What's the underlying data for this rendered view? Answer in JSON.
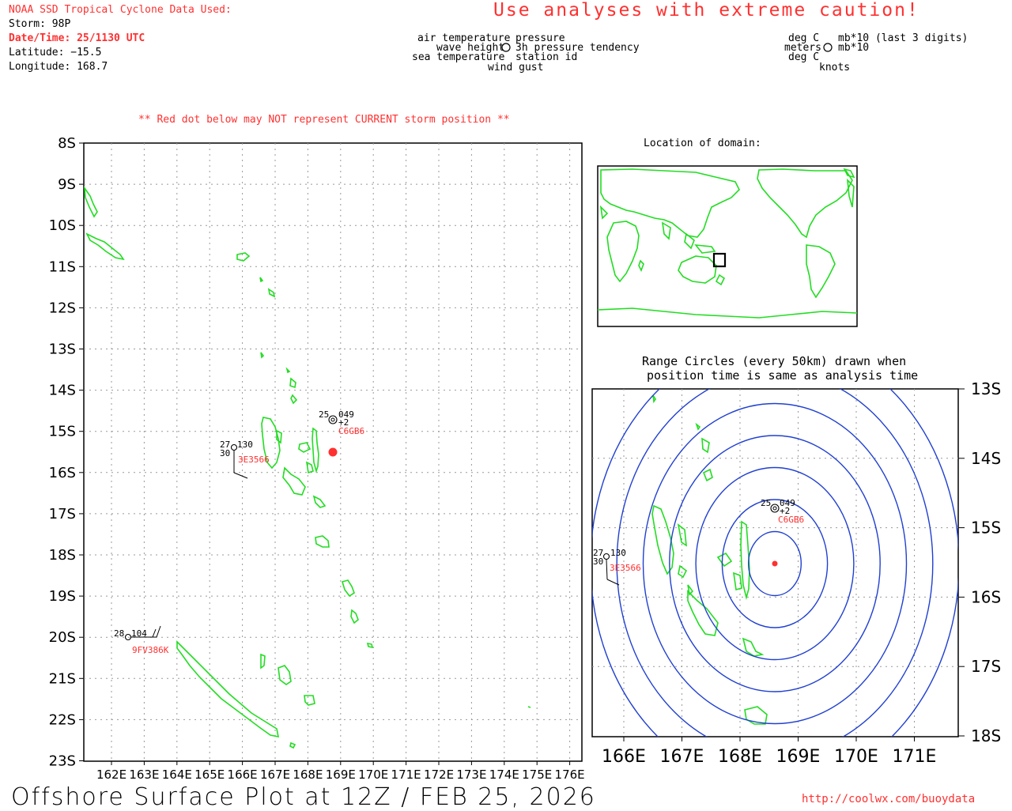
{
  "header": {
    "source_title": "NOAA SSD Tropical Cyclone Data Used:",
    "storm_label": "Storm: 98P",
    "datetime_label": "Date/Time: 25/1130 UTC",
    "latitude_label": "Latitude: −15.5",
    "longitude_label": "Longitude: 168.7",
    "caution": "Use analyses with extreme caution!"
  },
  "legend": {
    "left_upper_1": "air temperature",
    "left_upper_2": "wave height",
    "left_upper_3": "sea temperature",
    "right_upper_1": "pressure",
    "right_upper_2": "3h pressure tendency",
    "right_upper_3": "station id",
    "bottom": "wind gust",
    "units_left_1": "deg C",
    "units_left_2": "meters",
    "units_left_3": "deg C",
    "units_right_1": "mb*10 (last 3 digits)",
    "units_right_2": "mb*10",
    "units_bottom": "knots"
  },
  "warning": "** Red dot below may NOT represent CURRENT storm position **",
  "location_title": "Location of domain:",
  "range_title_1": "Range Circles (every 50km) drawn when",
  "range_title_2": "position time is same as analysis time",
  "footer": {
    "title": "Offshore Surface Plot at 12Z / FEB 25, 2026",
    "url": "http://coolwx.com/buoydata"
  },
  "main_map": {
    "lat_labels": [
      "8S",
      "9S",
      "10S",
      "11S",
      "12S",
      "13S",
      "14S",
      "15S",
      "16S",
      "17S",
      "18S",
      "19S",
      "20S",
      "21S",
      "22S",
      "23S"
    ],
    "lon_labels": [
      "162E",
      "163E",
      "164E",
      "165E",
      "166E",
      "167E",
      "168E",
      "169E",
      "170E",
      "171E",
      "172E",
      "173E",
      "174E",
      "175E",
      "176E"
    ]
  },
  "zoom_map": {
    "lat_labels": [
      "13S",
      "14S",
      "15S",
      "16S",
      "17S",
      "18S"
    ],
    "lon_labels": [
      "166E",
      "167E",
      "168E",
      "169E",
      "170E",
      "171E"
    ]
  },
  "storm": {
    "lat": -15.5,
    "lon": 168.7,
    "color": "#ff3030"
  },
  "stations": [
    {
      "id": "C6GB6",
      "air_temp": "25",
      "pressure": "049",
      "tendency": "+2",
      "lat": -14.7,
      "lon": 168.5
    },
    {
      "id": "3E3566",
      "air_temp": "27",
      "sea_temp": "30",
      "pressure": "130",
      "lat": -15.4,
      "lon": 165.8
    },
    {
      "id": "9FV386K",
      "air_temp": "28",
      "pressure": "104",
      "lat": -20.0,
      "lon": 162.9
    }
  ],
  "colors": {
    "coast": "#22dd22",
    "rings": "#2040d0",
    "accent": "#ff3030"
  }
}
